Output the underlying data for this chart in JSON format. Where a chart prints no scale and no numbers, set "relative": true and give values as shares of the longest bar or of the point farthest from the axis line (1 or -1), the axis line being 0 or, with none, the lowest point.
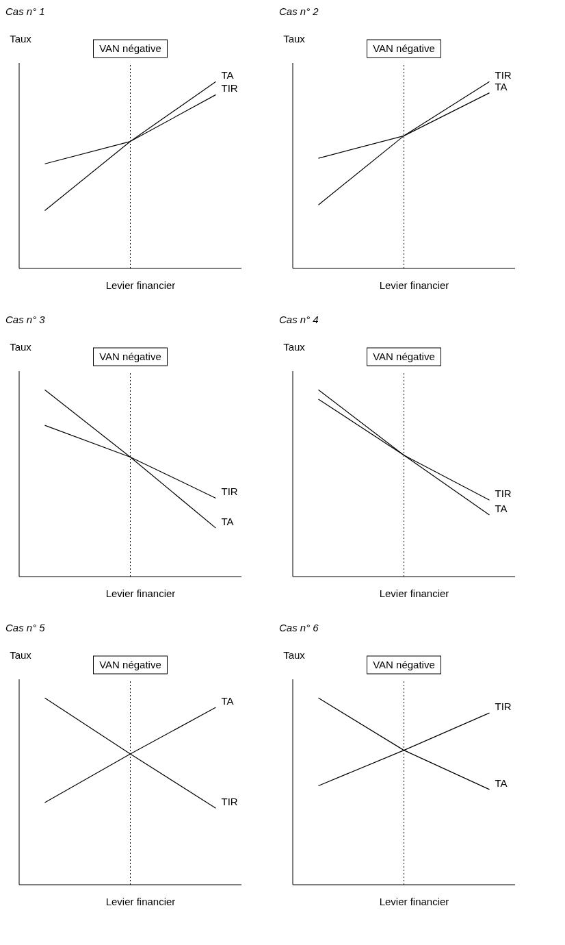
{
  "chart_data": [
    {
      "type": "line",
      "title": "Cas n° 1",
      "xlabel": "Levier financier",
      "ylabel": "Taux",
      "relative": true,
      "categories": [
        null,
        null,
        null
      ],
      "marker": "none",
      "legend": false,
      "grid": false,
      "annotations": [
        "VAN négative"
      ],
      "series": [
        {
          "name": "TA",
          "color": "#000000",
          "values": [
            0.31,
            0.68,
            1
          ]
        },
        {
          "name": "TIR",
          "color": "#000000",
          "values": [
            0.56,
            0.68,
            0.93
          ]
        }
      ]
    },
    {
      "type": "line",
      "title": "Cas n° 2",
      "xlabel": "Levier financier",
      "ylabel": "Taux",
      "relative": true,
      "categories": [
        null,
        null,
        null
      ],
      "marker": "none",
      "legend": false,
      "grid": false,
      "annotations": [
        "VAN négative"
      ],
      "series": [
        {
          "name": "TIR",
          "color": "#000000",
          "values": [
            0.34,
            0.71,
            1
          ]
        },
        {
          "name": "TA",
          "color": "#000000",
          "values": [
            0.59,
            0.71,
            0.94
          ]
        }
      ]
    },
    {
      "type": "line",
      "title": "Cas n° 3",
      "xlabel": "Levier financier",
      "ylabel": "Taux",
      "relative": true,
      "categories": [
        null,
        null,
        null
      ],
      "marker": "none",
      "legend": false,
      "grid": false,
      "annotations": [
        "VAN négative"
      ],
      "series": [
        {
          "name": "TA",
          "color": "#000000",
          "values": [
            1,
            0.64,
            0.26
          ]
        },
        {
          "name": "TIR",
          "color": "#000000",
          "values": [
            0.81,
            0.64,
            0.42
          ]
        }
      ]
    },
    {
      "type": "line",
      "title": "Cas n° 4",
      "xlabel": "Levier financier",
      "ylabel": "Taux",
      "relative": true,
      "categories": [
        null,
        null,
        null
      ],
      "marker": "none",
      "legend": false,
      "grid": false,
      "annotations": [
        "VAN négative"
      ],
      "series": [
        {
          "name": "TA",
          "color": "#000000",
          "values": [
            1,
            0.65,
            0.33
          ]
        },
        {
          "name": "TIR",
          "color": "#000000",
          "values": [
            0.95,
            0.65,
            0.41
          ]
        }
      ]
    },
    {
      "type": "line",
      "title": "Cas n° 5",
      "xlabel": "Levier financier",
      "ylabel": "Taux",
      "relative": true,
      "categories": [
        null,
        null,
        null
      ],
      "marker": "none",
      "legend": false,
      "grid": false,
      "annotations": [
        "VAN négative"
      ],
      "series": [
        {
          "name": "TA",
          "color": "#000000",
          "values": [
            0.44,
            0.7,
            0.95
          ]
        },
        {
          "name": "TIR",
          "color": "#000000",
          "values": [
            1,
            0.7,
            0.41
          ]
        }
      ]
    },
    {
      "type": "line",
      "title": "Cas n° 6",
      "xlabel": "Levier financier",
      "ylabel": "Taux",
      "relative": true,
      "categories": [
        null,
        null,
        null
      ],
      "marker": "none",
      "legend": false,
      "grid": false,
      "annotations": [
        "VAN négative"
      ],
      "series": [
        {
          "name": "TIR",
          "color": "#000000",
          "values": [
            0.53,
            0.72,
            0.92
          ]
        },
        {
          "name": "TA",
          "color": "#000000",
          "values": [
            1,
            0.72,
            0.51
          ]
        }
      ]
    }
  ]
}
